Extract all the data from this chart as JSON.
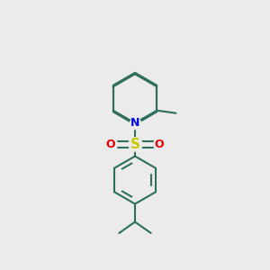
{
  "background_color": "#ebebeb",
  "bond_color": "#2d6e5e",
  "N_color": "#0000ee",
  "S_color": "#c8c800",
  "O_color": "#ee0000",
  "line_width": 1.5,
  "figsize": [
    3.0,
    3.0
  ],
  "dpi": 100,
  "xlim": [
    0,
    1
  ],
  "ylim": [
    0,
    1
  ]
}
